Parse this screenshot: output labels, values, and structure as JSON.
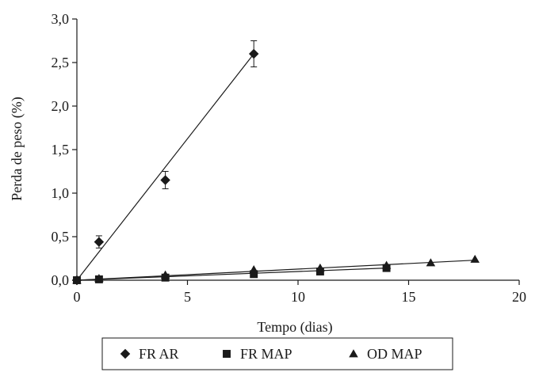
{
  "chart_data": {
    "type": "scatter",
    "xlabel": "Tempo (dias)",
    "ylabel": "Perda de peso  (%)",
    "xlim": [
      0,
      20
    ],
    "ylim": [
      0,
      3.0
    ],
    "x_ticks": [
      0,
      5,
      10,
      15,
      20
    ],
    "x_tick_labels": [
      "0",
      "5",
      "10",
      "15",
      "20"
    ],
    "y_ticks": [
      0,
      0.5,
      1.0,
      1.5,
      2.0,
      2.5,
      3.0
    ],
    "y_tick_labels": [
      "0,0",
      "0,5",
      "1,0",
      "1,5",
      "2,0",
      "2,5",
      "3,0"
    ],
    "grid": false,
    "legend_position": "bottom",
    "series": [
      {
        "name": "FR AR",
        "marker": "diamond",
        "color": "#1a1a1a",
        "x": [
          0,
          1,
          4,
          8
        ],
        "y": [
          0.0,
          0.44,
          1.15,
          2.6
        ],
        "error": [
          0.0,
          0.07,
          0.1,
          0.15
        ],
        "trendline": [
          [
            0,
            0.0
          ],
          [
            8,
            2.6
          ]
        ]
      },
      {
        "name": "FR MAP",
        "marker": "square",
        "color": "#1a1a1a",
        "x": [
          0,
          1,
          4,
          8,
          11,
          14
        ],
        "y": [
          0.0,
          0.01,
          0.03,
          0.07,
          0.1,
          0.14
        ],
        "error": [
          0,
          0,
          0,
          0,
          0,
          0
        ],
        "trendline": [
          [
            0,
            0.0
          ],
          [
            14,
            0.14
          ]
        ]
      },
      {
        "name": "OD MAP",
        "marker": "triangle",
        "color": "#1a1a1a",
        "x": [
          0,
          1,
          4,
          8,
          11,
          14,
          16,
          18
        ],
        "y": [
          0.0,
          0.02,
          0.06,
          0.12,
          0.14,
          0.17,
          0.2,
          0.24
        ],
        "error": [
          0,
          0,
          0,
          0,
          0,
          0,
          0,
          0
        ],
        "trendline": [
          [
            0,
            0.0
          ],
          [
            18,
            0.23
          ]
        ]
      }
    ]
  }
}
